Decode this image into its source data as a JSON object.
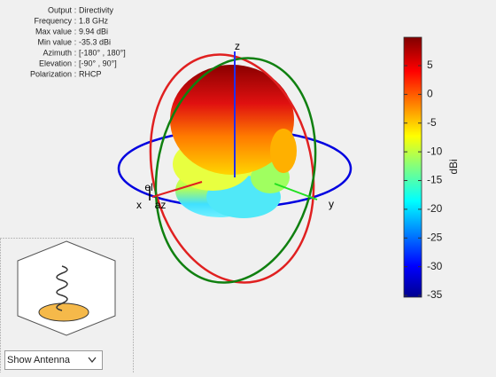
{
  "info": [
    {
      "label": "Output",
      "value": "Directivity"
    },
    {
      "label": "Frequency",
      "value": "1.8 GHz"
    },
    {
      "label": "Max value",
      "value": "9.94 dBi"
    },
    {
      "label": "Min value",
      "value": "-35.3 dBi"
    },
    {
      "label": "Azimuth",
      "value": "[-180° , 180°]"
    },
    {
      "label": "Elevation",
      "value": "[-90° , 90°]"
    },
    {
      "label": "Polarization",
      "value": "RHCP"
    }
  ],
  "separator": ":",
  "axes_labels": {
    "x": "x",
    "y": "y",
    "z": "z",
    "el": "el",
    "az": "az"
  },
  "colorbar": {
    "label": "dBi",
    "lim": [
      -35.3,
      9.94
    ],
    "ticks": [
      5,
      0,
      -5,
      -10,
      -15,
      -20,
      -25,
      -30,
      -35
    ]
  },
  "dropdown": "Show Antenna"
}
